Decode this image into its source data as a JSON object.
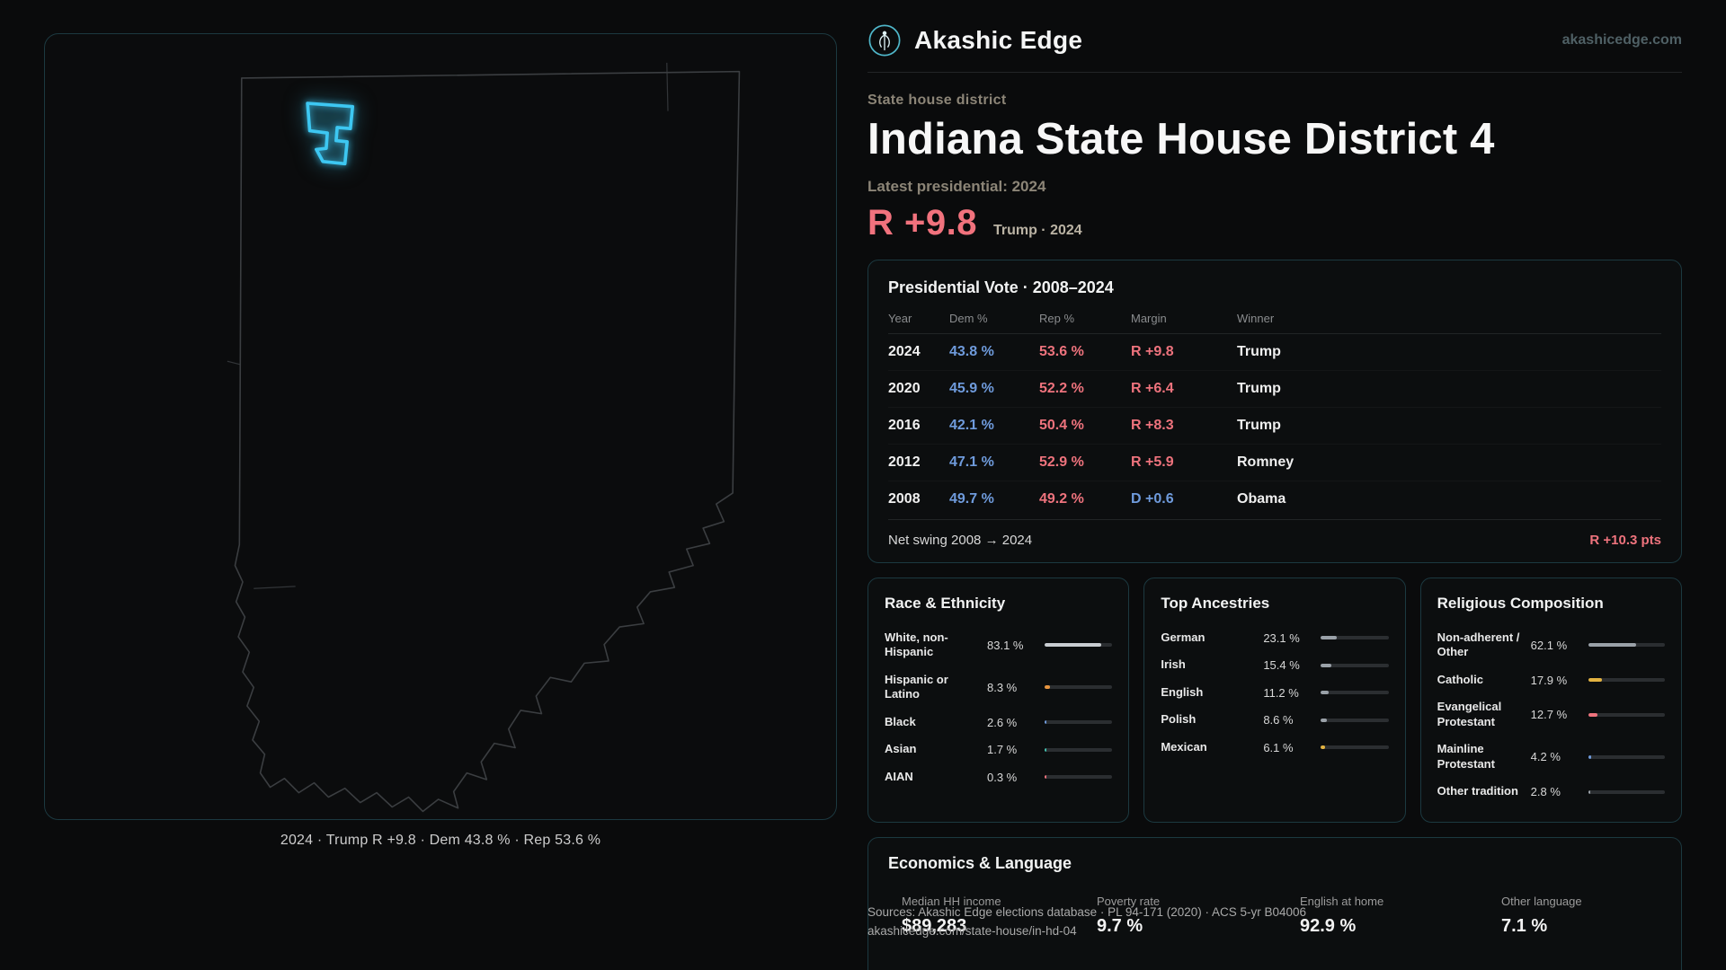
{
  "site": {
    "brand": "Akashic Edge",
    "domain": "akashicedge.com"
  },
  "map": {
    "caption": "2024 · Trump R +9.8 · Dem 43.8 % · Rep 53.6 %"
  },
  "page": {
    "kicker": "State house district",
    "title": "Indiana State House District 4",
    "latest": "Latest presidential: 2024",
    "lead_margin": "R +9.8",
    "lead_context": "Trump · 2024"
  },
  "presidential": {
    "title": "Presidential Vote · 2008–2024",
    "columns": {
      "year": "Year",
      "dem": "Dem %",
      "rep": "Rep %",
      "margin": "Margin",
      "winner": "Winner"
    },
    "rows": [
      {
        "year": "2024",
        "dem": "43.8 %",
        "rep": "53.6 %",
        "margin": "R +9.8",
        "margin_party": "R",
        "winner": "Trump"
      },
      {
        "year": "2020",
        "dem": "45.9 %",
        "rep": "52.2 %",
        "margin": "R +6.4",
        "margin_party": "R",
        "winner": "Trump"
      },
      {
        "year": "2016",
        "dem": "42.1 %",
        "rep": "50.4 %",
        "margin": "R +8.3",
        "margin_party": "R",
        "winner": "Trump"
      },
      {
        "year": "2012",
        "dem": "47.1 %",
        "rep": "52.9 %",
        "margin": "R +5.9",
        "margin_party": "R",
        "winner": "Romney"
      },
      {
        "year": "2008",
        "dem": "49.7 %",
        "rep": "49.2 %",
        "margin": "D +0.6",
        "margin_party": "D",
        "winner": "Obama"
      }
    ],
    "net_swing_label": "Net swing 2008 → 2024",
    "net_swing_value": "R +10.3 pts"
  },
  "demographics": {
    "race": {
      "title": "Race & Ethnicity",
      "rows": [
        {
          "label": "White, non-Hispanic",
          "value": "83.1 %",
          "pct": 83.1,
          "color": "#c9cdd2"
        },
        {
          "label": "Hispanic or Latino",
          "value": "8.3 %",
          "pct": 8.3,
          "color": "#e8953f"
        },
        {
          "label": "Black",
          "value": "2.6 %",
          "pct": 2.6,
          "color": "#6f9bdc"
        },
        {
          "label": "Asian",
          "value": "1.7 %",
          "pct": 1.7,
          "color": "#43c0ae"
        },
        {
          "label": "AIAN",
          "value": "0.3 %",
          "pct": 0.3,
          "color": "#ee737d"
        }
      ]
    },
    "ancestries": {
      "title": "Top Ancestries",
      "rows": [
        {
          "label": "German",
          "value": "23.1 %",
          "pct": 23.1,
          "color": "#9aa1a8"
        },
        {
          "label": "Irish",
          "value": "15.4 %",
          "pct": 15.4,
          "color": "#9aa1a8"
        },
        {
          "label": "English",
          "value": "11.2 %",
          "pct": 11.2,
          "color": "#9aa1a8"
        },
        {
          "label": "Polish",
          "value": "8.6 %",
          "pct": 8.6,
          "color": "#9aa1a8"
        },
        {
          "label": "Mexican",
          "value": "6.1 %",
          "pct": 6.1,
          "color": "#e3b341"
        }
      ]
    },
    "religion": {
      "title": "Religious Composition",
      "rows": [
        {
          "label": "Non-adherent / Other",
          "value": "62.1 %",
          "pct": 62.1,
          "color": "#9aa1a8"
        },
        {
          "label": "Catholic",
          "value": "17.9 %",
          "pct": 17.9,
          "color": "#e3b341"
        },
        {
          "label": "Evangelical Protestant",
          "value": "12.7 %",
          "pct": 12.7,
          "color": "#ee737d"
        },
        {
          "label": "Mainline Protestant",
          "value": "4.2 %",
          "pct": 4.2,
          "color": "#6f9bdc"
        },
        {
          "label": "Other tradition",
          "value": "2.8 %",
          "pct": 2.8,
          "color": "#9aa1a8"
        }
      ]
    }
  },
  "economics": {
    "title": "Economics & Language",
    "stats": [
      {
        "label": "Median HH income",
        "value": "$89,283"
      },
      {
        "label": "Poverty rate",
        "value": "9.7 %"
      },
      {
        "label": "English at home",
        "value": "92.9 %"
      },
      {
        "label": "Other language",
        "value": "7.1 %"
      }
    ]
  },
  "footer": {
    "sources": "Sources: Akashic Edge elections database · PL 94-171 (2020) · ACS 5-yr B04006",
    "permalink": "akashicedge.com/state-house/in-hd-04"
  },
  "colors": {
    "accent_cyan": "#3dc7f2",
    "rep_red": "#ee737d",
    "dem_blue": "#6f9bdc",
    "gold": "#e3b341",
    "orange": "#e8953f",
    "teal": "#43c0ae",
    "card_border": "#1c3940"
  }
}
